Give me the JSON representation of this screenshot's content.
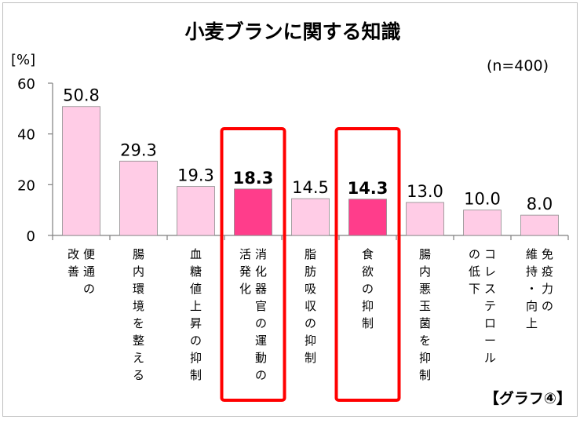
{
  "chart_data": {
    "type": "bar",
    "title": "小麦ブランに関する知識",
    "unit_label": "[%]",
    "sample_note": "(n=400)",
    "badge": "【グラフ④】",
    "ylim": [
      0,
      60
    ],
    "yticks": [
      0,
      20,
      40,
      60
    ],
    "grid": false,
    "categories": [
      "便通の改善",
      "腸内環境を整える",
      "血糖値上昇の抑制",
      "消化器官の運動の活発化",
      "脂肪吸収の抑制",
      "食欲の抑制",
      "腸内悪玉菌を抑制",
      "コレステロールの低下",
      "免疫力の維持・向上"
    ],
    "category_columns": [
      [
        "便通の",
        "改善"
      ],
      [
        "腸内環境を整える"
      ],
      [
        "血糖値上昇の抑制"
      ],
      [
        "消化器官の運動の",
        "活発化"
      ],
      [
        "脂肪吸収の抑制"
      ],
      [
        "食欲の抑制"
      ],
      [
        "腸内悪玉菌を抑制"
      ],
      [
        "コレステロール",
        "の低下"
      ],
      [
        "免疫力の",
        "維持・向上"
      ]
    ],
    "values": [
      50.8,
      29.3,
      19.3,
      18.3,
      14.5,
      14.3,
      13.0,
      10.0,
      8.0
    ],
    "value_labels": [
      "50.8",
      "29.3",
      "19.3",
      "18.3",
      "14.5",
      "14.3",
      "13.0",
      "10.0",
      "8.0"
    ],
    "highlighted": [
      false,
      false,
      false,
      true,
      false,
      true,
      false,
      false,
      false
    ],
    "colors": {
      "bar": "#ffcce6",
      "bar_highlight": "#ff3d8b",
      "bar_stroke": "#8c8c8c",
      "highlight_box": "#ff0000",
      "axis": "#7f7f7f"
    }
  }
}
